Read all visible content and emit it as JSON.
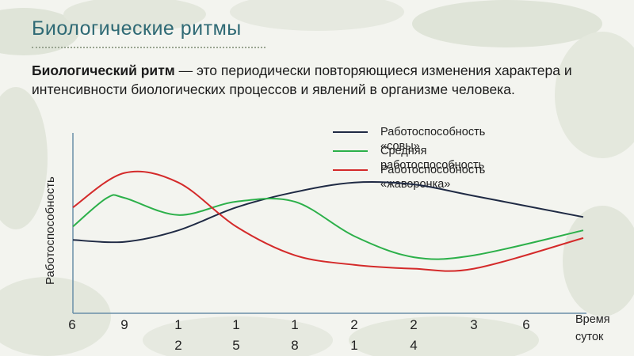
{
  "slide": {
    "title": "Биологические ритмы",
    "definition_term": "Биологический ритм",
    "definition_text": " — это периодически повторяющиеся изменения характера и интенсивности биологических процессов и явлений в организме человека."
  },
  "chart_data": {
    "type": "line",
    "xlabel": "Время суток",
    "ylabel": "Работоспособность",
    "x_ticks": [
      "6",
      "9",
      "12",
      "15",
      "18",
      "21",
      "24",
      "3",
      "6"
    ],
    "series": [
      {
        "name": "Работоспособность «совы»",
        "color": "#1f2a44",
        "x": [
          6,
          9,
          12,
          15,
          18,
          21,
          24,
          3,
          6
        ],
        "y": [
          35,
          34,
          40,
          52,
          60,
          65,
          64,
          58,
          47
        ]
      },
      {
        "name": "Средняя работоспособность",
        "color": "#2cb04a",
        "x": [
          6,
          8,
          9,
          12,
          15,
          18,
          21,
          24,
          3,
          6
        ],
        "y": [
          42,
          57,
          57,
          48,
          55,
          55,
          37,
          26,
          27,
          40
        ]
      },
      {
        "name": "Работоспособность «жаворонка»",
        "color": "#d42a2a",
        "x": [
          6,
          9,
          12,
          15,
          18,
          21,
          24,
          3,
          6
        ],
        "y": [
          52,
          70,
          65,
          42,
          27,
          22,
          20,
          20,
          36
        ]
      }
    ]
  }
}
